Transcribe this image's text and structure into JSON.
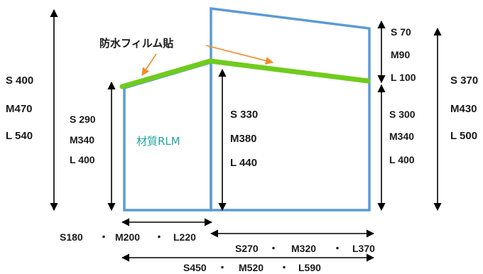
{
  "film_label": "防水フィルム貼",
  "material_label": "材質RLM",
  "left_overall_height": {
    "s": "S 400",
    "m": "M470",
    "l": "L 540"
  },
  "left_panel_height": {
    "s": "S 290",
    "m": "M340",
    "l": "L 400"
  },
  "center_height": {
    "s": "S 330",
    "m": "M380",
    "l": "L 440"
  },
  "right_top_gap": {
    "s": "S 70",
    "m": "M90",
    "l": "L 100"
  },
  "right_panel_height": {
    "s": "S 300",
    "m": "M340",
    "l": "L 400"
  },
  "right_overall_height": {
    "s": "S 370",
    "m": "M430",
    "l": "L 500"
  },
  "width_left": {
    "s": "S180",
    "sep1": "・",
    "m": "M200",
    "sep2": "・",
    "l": "L220"
  },
  "width_right": {
    "s": "S270",
    "sep1": "・",
    "m": "M320",
    "sep2": "・",
    "l": "L370"
  },
  "width_total": {
    "s": "S450",
    "sep1": "・",
    "m": "M520",
    "sep2": "・",
    "l": "L590"
  },
  "colors": {
    "panel_outline": "#5b9bd5",
    "film": "#6fcc1c",
    "callout_arrow": "#f28c28",
    "material_text": "#1fa5a0",
    "dimension": "#000000"
  }
}
